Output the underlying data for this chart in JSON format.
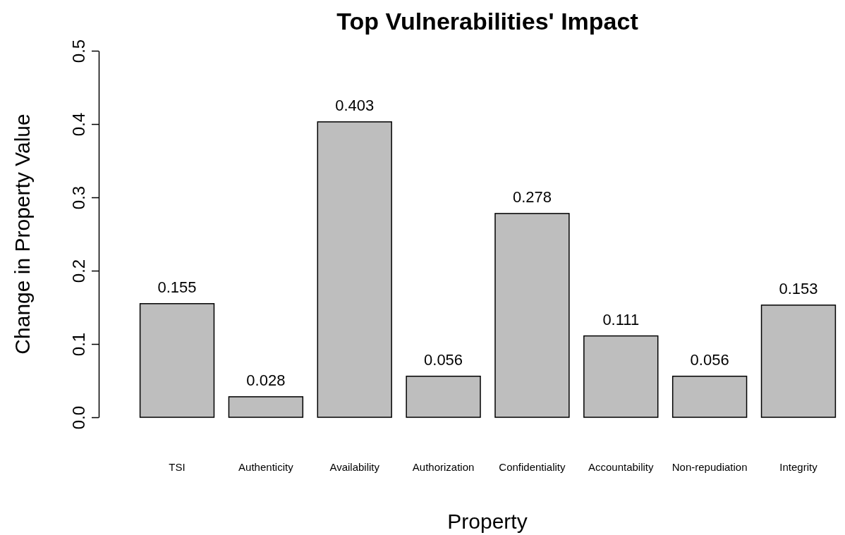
{
  "chart_data": {
    "type": "bar",
    "title": "Top Vulnerabilities' Impact",
    "xlabel": "Property",
    "ylabel": "Change in Property Value",
    "categories": [
      "TSI",
      "Authenticity",
      "Availability",
      "Authorization",
      "Confidentiality",
      "Accountability",
      "Non-repudiation",
      "Integrity"
    ],
    "values": [
      0.155,
      0.028,
      0.403,
      0.056,
      0.278,
      0.111,
      0.056,
      0.153
    ],
    "color": "#bebebe",
    "ylim": [
      0,
      0.5
    ],
    "yticks": [
      {
        "value": 0,
        "label": "0.0"
      },
      {
        "value": 0.1,
        "label": "0.1"
      },
      {
        "value": 0.2,
        "label": "0.2"
      },
      {
        "value": 0.3,
        "label": "0.3"
      },
      {
        "value": 0.4,
        "label": "0.4"
      },
      {
        "value": 0.5,
        "label": "0.5"
      }
    ],
    "data_labels": true
  }
}
